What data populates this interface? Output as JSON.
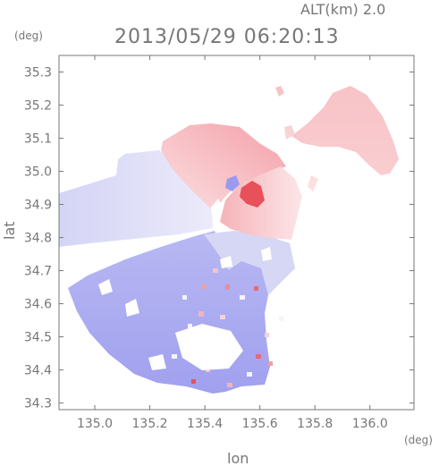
{
  "header": {
    "altitude": "ALT(km)  2.0",
    "datetime": "2013/05/29 06:20:13"
  },
  "chart_data": {
    "type": "heatmap",
    "title": "2013/05/29 06:20:13",
    "subtitle": "ALT(km)  2.0",
    "xlabel": "lon",
    "ylabel": "lat",
    "x_unit": "(deg)",
    "y_unit": "(deg)",
    "xlim": [
      134.87,
      136.16
    ],
    "ylim": [
      34.28,
      35.35
    ],
    "x_ticks": [
      "135.0",
      "135.2",
      "135.4",
      "135.6",
      "135.8",
      "136.0"
    ],
    "y_ticks": [
      "34.3",
      "34.4",
      "34.5",
      "34.6",
      "34.7",
      "34.8",
      "34.9",
      "35.0",
      "35.1",
      "35.2",
      "35.3"
    ],
    "color_scheme": {
      "positive": "#e8505a",
      "near_zero": "#f4f4fb",
      "negative": "#8c8cf0"
    },
    "radar_center": {
      "lon": 135.46,
      "lat": 34.84
    },
    "grid": false,
    "legend": "none"
  }
}
